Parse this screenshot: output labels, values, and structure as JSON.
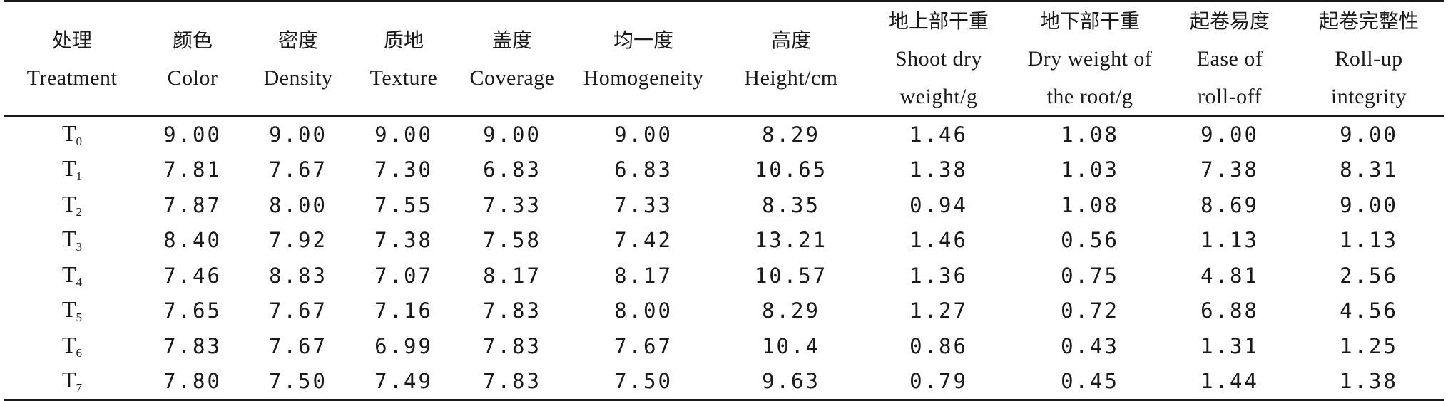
{
  "table": {
    "columns": [
      {
        "cn": "处理",
        "en": [
          "Treatment"
        ]
      },
      {
        "cn": "颜色",
        "en": [
          "Color"
        ]
      },
      {
        "cn": "密度",
        "en": [
          "Density"
        ]
      },
      {
        "cn": "质地",
        "en": [
          "Texture"
        ]
      },
      {
        "cn": "盖度",
        "en": [
          "Coverage"
        ]
      },
      {
        "cn": "均一度",
        "en": [
          "Homogeneity"
        ]
      },
      {
        "cn": "高度",
        "en": [
          "Height/cm"
        ]
      },
      {
        "cn": "地上部干重",
        "en": [
          "Shoot dry",
          "weight/g"
        ]
      },
      {
        "cn": "地下部干重",
        "en": [
          "Dry weight of",
          "the root/g"
        ]
      },
      {
        "cn": "起卷易度",
        "en": [
          "Ease of",
          "roll-off"
        ]
      },
      {
        "cn": "起卷完整性",
        "en": [
          "Roll-up",
          "integrity"
        ]
      }
    ],
    "rows": [
      {
        "trt": "T",
        "sub": "0",
        "values": [
          "9.00",
          "9.00",
          "9.00",
          "9.00",
          "9.00",
          "8.29",
          "1.46",
          "1.08",
          "9.00",
          "9.00"
        ]
      },
      {
        "trt": "T",
        "sub": "1",
        "values": [
          "7.81",
          "7.67",
          "7.30",
          "6.83",
          "6.83",
          "10.65",
          "1.38",
          "1.03",
          "7.38",
          "8.31"
        ]
      },
      {
        "trt": "T",
        "sub": "2",
        "values": [
          "7.87",
          "8.00",
          "7.55",
          "7.33",
          "7.33",
          "8.35",
          "0.94",
          "1.08",
          "8.69",
          "9.00"
        ]
      },
      {
        "trt": "T",
        "sub": "3",
        "values": [
          "8.40",
          "7.92",
          "7.38",
          "7.58",
          "7.42",
          "13.21",
          "1.46",
          "0.56",
          "1.13",
          "1.13"
        ]
      },
      {
        "trt": "T",
        "sub": "4",
        "values": [
          "7.46",
          "8.83",
          "7.07",
          "8.17",
          "8.17",
          "10.57",
          "1.36",
          "0.75",
          "4.81",
          "2.56"
        ]
      },
      {
        "trt": "T",
        "sub": "5",
        "values": [
          "7.65",
          "7.67",
          "7.16",
          "7.83",
          "8.00",
          "8.29",
          "1.27",
          "0.72",
          "6.88",
          "4.56"
        ]
      },
      {
        "trt": "T",
        "sub": "6",
        "values": [
          "7.83",
          "7.67",
          "6.99",
          "7.83",
          "7.67",
          "10.4",
          "0.86",
          "0.43",
          "1.31",
          "1.25"
        ]
      },
      {
        "trt": "T",
        "sub": "7",
        "values": [
          "7.80",
          "7.50",
          "7.49",
          "7.83",
          "7.50",
          "9.63",
          "0.79",
          "0.45",
          "1.44",
          "1.38"
        ]
      }
    ]
  }
}
